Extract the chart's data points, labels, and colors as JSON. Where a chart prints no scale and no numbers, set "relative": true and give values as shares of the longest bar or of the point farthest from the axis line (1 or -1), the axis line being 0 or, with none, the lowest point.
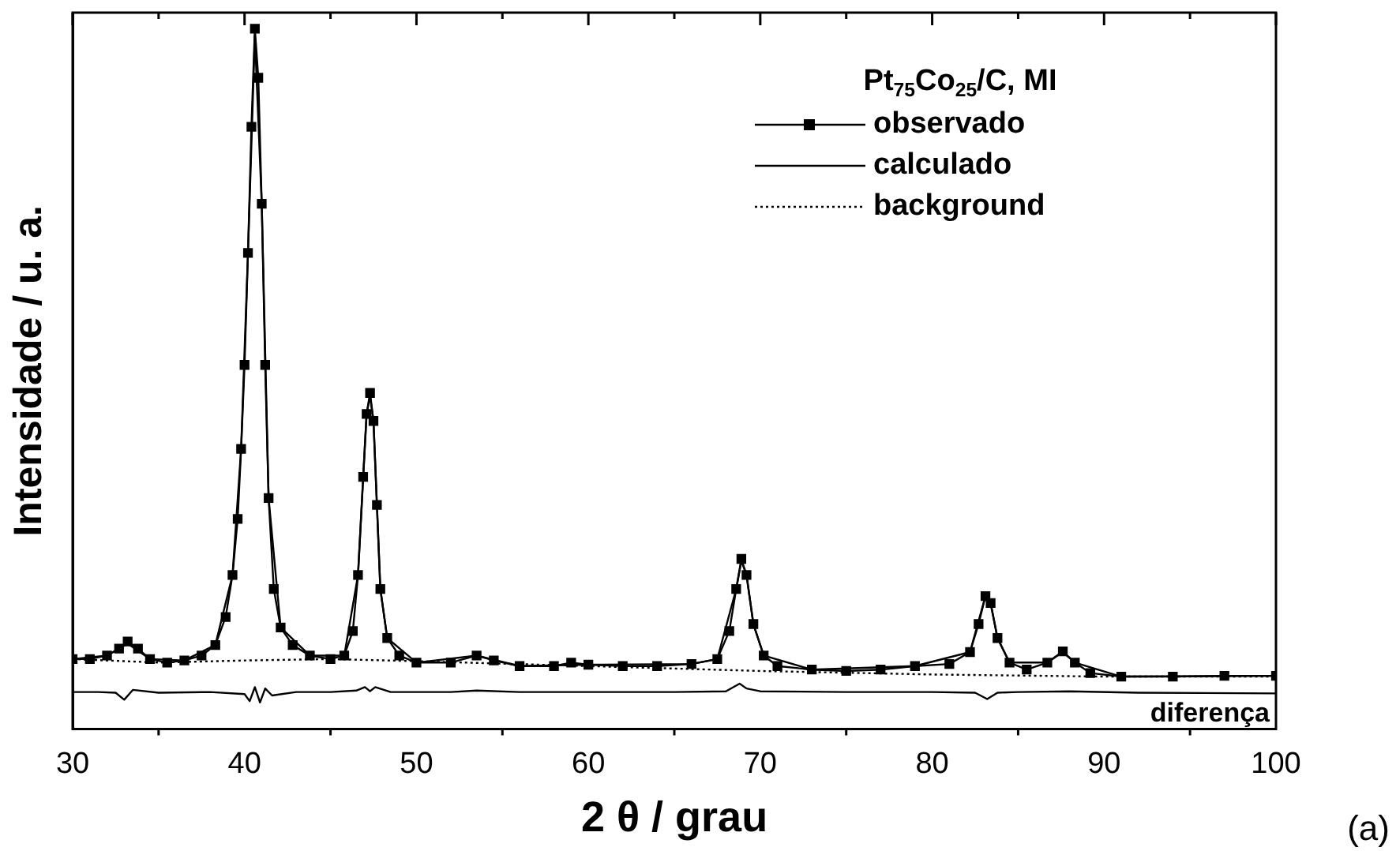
{
  "chart_data": {
    "type": "line",
    "relative": true,
    "xlabel": "2 θ / grau",
    "ylabel": "Intensidade / u. a.",
    "legend_title": "Pt$_{75}$Co$_{25}$/C, MI",
    "legend": "top right",
    "xlim": [
      30,
      100
    ],
    "xticks": [
      30,
      40,
      50,
      60,
      70,
      80,
      90,
      100
    ],
    "annotations": [
      "(a)"
    ],
    "series": [
      {
        "name": "observado",
        "color": "#000000",
        "marker": "square",
        "line_style": "solid",
        "x": [
          30,
          31,
          32,
          32.7,
          33.2,
          33.8,
          34.5,
          35.5,
          36.5,
          37.5,
          38.3,
          38.9,
          39.3,
          39.6,
          39.8,
          40.0,
          40.2,
          40.4,
          40.6,
          40.8,
          41.0,
          41.2,
          41.4,
          41.7,
          42.1,
          42.8,
          43.8,
          45,
          45.8,
          46.3,
          46.6,
          46.9,
          47.1,
          47.3,
          47.5,
          47.7,
          47.9,
          48.3,
          49,
          50,
          52,
          53.5,
          54.5,
          56,
          58,
          59,
          60,
          62,
          64,
          66,
          67.5,
          68.2,
          68.6,
          68.9,
          69.2,
          69.6,
          70.2,
          71,
          73,
          75,
          77,
          79,
          81,
          82.2,
          82.7,
          83.1,
          83.4,
          83.8,
          84.5,
          85.5,
          86.7,
          87.6,
          88.3,
          89.2,
          91,
          94,
          97,
          100
        ],
        "values": [
          0.1,
          0.1,
          0.105,
          0.115,
          0.125,
          0.115,
          0.1,
          0.095,
          0.098,
          0.105,
          0.12,
          0.16,
          0.22,
          0.3,
          0.4,
          0.52,
          0.68,
          0.86,
          1.0,
          0.93,
          0.75,
          0.52,
          0.33,
          0.2,
          0.145,
          0.12,
          0.105,
          0.1,
          0.105,
          0.14,
          0.22,
          0.36,
          0.45,
          0.48,
          0.44,
          0.32,
          0.2,
          0.13,
          0.105,
          0.095,
          0.095,
          0.105,
          0.098,
          0.09,
          0.09,
          0.095,
          0.092,
          0.09,
          0.09,
          0.093,
          0.1,
          0.14,
          0.2,
          0.243,
          0.22,
          0.15,
          0.105,
          0.09,
          0.085,
          0.083,
          0.085,
          0.09,
          0.093,
          0.11,
          0.15,
          0.19,
          0.18,
          0.13,
          0.095,
          0.085,
          0.095,
          0.111,
          0.095,
          0.08,
          0.075,
          0.075,
          0.076,
          0.076
        ]
      },
      {
        "name": "calculado",
        "color": "#000000",
        "marker": "none",
        "line_style": "solid",
        "x": [
          30,
          32,
          33.2,
          34.5,
          36.5,
          38.3,
          39.3,
          39.8,
          40.2,
          40.6,
          41.0,
          41.4,
          42.1,
          43.8,
          45.8,
          46.6,
          47.1,
          47.3,
          47.5,
          47.9,
          48.3,
          50,
          53.5,
          56,
          60,
          66,
          67.5,
          68.6,
          68.9,
          69.2,
          69.6,
          70.2,
          73,
          79,
          82.2,
          83.1,
          83.4,
          83.8,
          84.5,
          86.7,
          87.6,
          88.3,
          91,
          100
        ],
        "values": [
          0.1,
          0.105,
          0.122,
          0.1,
          0.098,
          0.12,
          0.22,
          0.4,
          0.68,
          0.99,
          0.75,
          0.33,
          0.145,
          0.105,
          0.105,
          0.22,
          0.45,
          0.475,
          0.44,
          0.2,
          0.13,
          0.095,
          0.105,
          0.09,
          0.092,
          0.093,
          0.1,
          0.2,
          0.24,
          0.22,
          0.15,
          0.105,
          0.085,
          0.09,
          0.11,
          0.19,
          0.18,
          0.13,
          0.095,
          0.095,
          0.11,
          0.095,
          0.075,
          0.076
        ]
      },
      {
        "name": "background",
        "color": "#000000",
        "marker": "none",
        "line_style": "dotted",
        "x": [
          30,
          35,
          40,
          45,
          50,
          60,
          70,
          80,
          90,
          100
        ],
        "values": [
          0.1,
          0.095,
          0.098,
          0.1,
          0.097,
          0.09,
          0.083,
          0.078,
          0.075,
          0.075
        ]
      },
      {
        "name": "diferença",
        "color": "#000000",
        "marker": "none",
        "line_style": "solid",
        "x": [
          30,
          31.5,
          32.5,
          33,
          33.5,
          35,
          38,
          40,
          40.3,
          40.6,
          40.9,
          41.2,
          41.6,
          43,
          45,
          46.5,
          47,
          47.3,
          47.6,
          48.5,
          52,
          53.5,
          56,
          60,
          65,
          68,
          68.8,
          69.2,
          70,
          75,
          80,
          82.5,
          83.2,
          83.8,
          85,
          88,
          92,
          100
        ],
        "values": [
          0.053,
          0.053,
          0.052,
          0.042,
          0.056,
          0.052,
          0.053,
          0.05,
          0.04,
          0.06,
          0.038,
          0.058,
          0.048,
          0.053,
          0.053,
          0.055,
          0.06,
          0.054,
          0.06,
          0.053,
          0.053,
          0.055,
          0.053,
          0.053,
          0.053,
          0.054,
          0.065,
          0.058,
          0.054,
          0.053,
          0.053,
          0.052,
          0.043,
          0.052,
          0.053,
          0.054,
          0.052,
          0.051
        ]
      }
    ]
  }
}
